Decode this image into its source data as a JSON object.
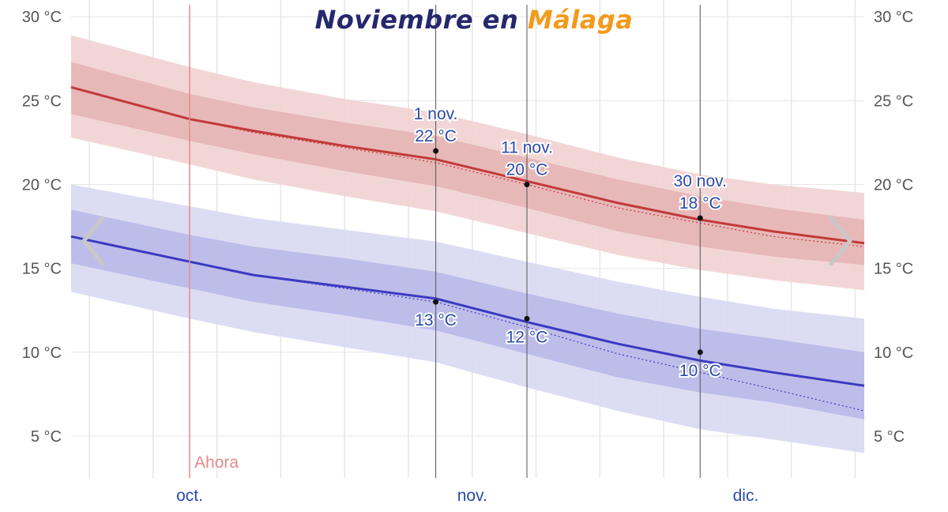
{
  "title": {
    "prefix": "Noviembre en",
    "city": "Málaga"
  },
  "colors": {
    "title_prefix": "#26286e",
    "title_city": "#f39a1c",
    "high_line": "#c23a3a",
    "high_band_inner": "#e5b3b3",
    "high_band_outer": "#f1d2d2",
    "low_line": "#3a3ac2",
    "low_band_inner": "#b7b7e6",
    "low_band_outer": "#d8d8f2",
    "now_line": "#e88a8a",
    "label_text": "#2b4aa8",
    "axis_text": "#555555",
    "month_text": "#2b4aa8",
    "arrow": "#c8c8c8"
  },
  "now_label": "Ahora",
  "chart_data": {
    "type": "line",
    "title": "Noviembre en Málaga",
    "x_unit": "day_of_year",
    "xlim": [
      265,
      352
    ],
    "ylim": [
      2.5,
      31
    ],
    "y_ticks": [
      {
        "value": 5,
        "label": "5 °C"
      },
      {
        "value": 10,
        "label": "10 °C"
      },
      {
        "value": 15,
        "label": "15 °C"
      },
      {
        "value": 20,
        "label": "20 °C"
      },
      {
        "value": 25,
        "label": "25 °C"
      },
      {
        "value": 30,
        "label": "30 °C"
      }
    ],
    "month_labels": [
      {
        "label": "oct.",
        "day": 278
      },
      {
        "label": "nov.",
        "day": 309
      },
      {
        "label": "dic.",
        "day": 339
      }
    ],
    "now_day": 278,
    "highlight_days": [
      305,
      315,
      334
    ],
    "series": [
      {
        "key": "high",
        "x": [
          265,
          278,
          285,
          295,
          305,
          315,
          325,
          334,
          342,
          352
        ],
        "values": [
          25.8,
          23.9,
          23.2,
          22.3,
          21.5,
          20.2,
          18.9,
          17.9,
          17.2,
          16.5
        ],
        "normal": [
          25.8,
          23.9,
          23.1,
          22.2,
          21.3,
          20.0,
          18.6,
          17.7,
          16.9,
          16.3
        ],
        "p25": [
          24.2,
          22.6,
          21.8,
          20.8,
          19.9,
          18.6,
          17.2,
          16.3,
          15.7,
          15.2
        ],
        "p75": [
          27.3,
          25.4,
          24.6,
          23.7,
          22.9,
          21.6,
          20.3,
          19.3,
          18.6,
          17.9
        ],
        "p10": [
          22.8,
          21.2,
          20.3,
          19.3,
          18.4,
          17.1,
          15.8,
          14.9,
          14.3,
          13.7
        ],
        "p90": [
          28.9,
          27.0,
          26.1,
          25.1,
          24.3,
          23.0,
          21.6,
          20.6,
          20.0,
          19.5
        ]
      },
      {
        "key": "low",
        "x": [
          265,
          278,
          285,
          295,
          305,
          315,
          325,
          334,
          342,
          352
        ],
        "values": [
          16.9,
          15.4,
          14.6,
          13.9,
          13.2,
          11.8,
          10.5,
          9.5,
          8.8,
          8.0
        ],
        "normal": [
          16.9,
          15.4,
          14.6,
          13.8,
          13.0,
          11.5,
          9.9,
          8.8,
          7.8,
          6.5
        ],
        "p25": [
          15.3,
          13.8,
          13.0,
          12.2,
          11.3,
          9.9,
          8.5,
          7.6,
          7.0,
          6.0
        ],
        "p75": [
          18.5,
          17.0,
          16.3,
          15.6,
          14.8,
          13.5,
          12.3,
          11.4,
          10.8,
          10.0
        ],
        "p10": [
          13.6,
          12.0,
          11.2,
          10.3,
          9.4,
          7.9,
          6.5,
          5.4,
          4.8,
          4.0
        ],
        "p90": [
          20.0,
          18.7,
          18.0,
          17.3,
          16.6,
          15.4,
          14.2,
          13.3,
          12.6,
          12.0
        ]
      }
    ],
    "annotations": [
      {
        "series": "high",
        "day": 305,
        "date": "1 nov.",
        "value": 22,
        "label": "22 °C"
      },
      {
        "series": "high",
        "day": 315,
        "date": "11 nov.",
        "value": 20,
        "label": "20 °C"
      },
      {
        "series": "high",
        "day": 334,
        "date": "30 nov.",
        "value": 18,
        "label": "18 °C"
      },
      {
        "series": "low",
        "day": 305,
        "value": 13,
        "label": "13 °C"
      },
      {
        "series": "low",
        "day": 315,
        "value": 12,
        "label": "12 °C"
      },
      {
        "series": "low",
        "day": 334,
        "value": 10,
        "label": "10 °C"
      }
    ],
    "grid": true
  }
}
